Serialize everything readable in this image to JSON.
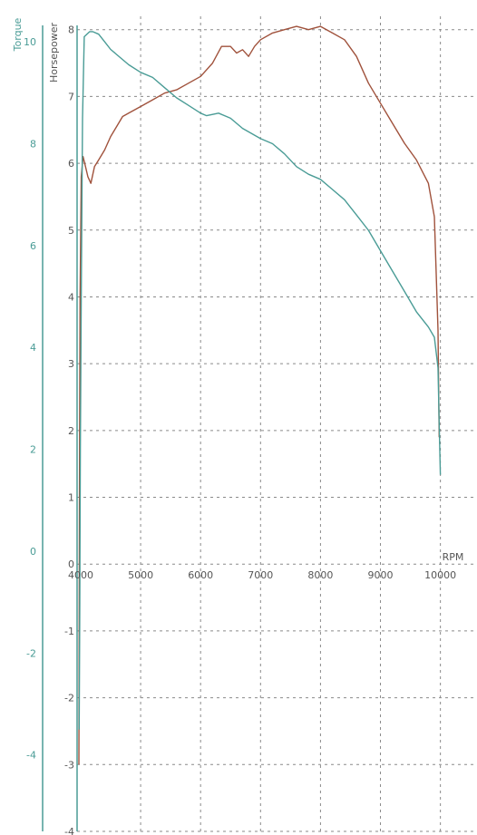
{
  "chart_data": {
    "type": "line",
    "xlabel": "RPM",
    "axes": {
      "x": {
        "ticks": [
          4000,
          5000,
          6000,
          7000,
          8000,
          9000,
          10000
        ],
        "range": [
          3940,
          10550
        ]
      },
      "hp": {
        "label": "Horsepower",
        "ticks": [
          -4,
          -3,
          -2,
          -1,
          0,
          1,
          2,
          3,
          4,
          5,
          6,
          7,
          8
        ],
        "range": [
          -4,
          8.2
        ]
      },
      "torque": {
        "label": "Torque",
        "ticks": [
          -4,
          -2,
          0,
          2,
          4,
          6,
          8,
          10
        ],
        "range": [
          -5.5,
          10.5
        ]
      }
    },
    "grid": true,
    "colors": {
      "horsepower": "#a0523c",
      "torque": "#4a9c96",
      "grid": "#8a8a8a",
      "axis": "#4a9c96"
    },
    "series": [
      {
        "name": "Horsepower",
        "axis": "hp",
        "points": [
          [
            3970,
            -3.0
          ],
          [
            3980,
            1.0
          ],
          [
            3990,
            4.0
          ],
          [
            4010,
            5.8
          ],
          [
            4040,
            6.1
          ],
          [
            4080,
            5.95
          ],
          [
            4120,
            5.8
          ],
          [
            4170,
            5.7
          ],
          [
            4230,
            5.95
          ],
          [
            4300,
            6.05
          ],
          [
            4400,
            6.2
          ],
          [
            4500,
            6.4
          ],
          [
            4600,
            6.55
          ],
          [
            4700,
            6.7
          ],
          [
            4800,
            6.75
          ],
          [
            5000,
            6.85
          ],
          [
            5200,
            6.95
          ],
          [
            5400,
            7.05
          ],
          [
            5600,
            7.1
          ],
          [
            5800,
            7.2
          ],
          [
            6000,
            7.3
          ],
          [
            6200,
            7.5
          ],
          [
            6350,
            7.75
          ],
          [
            6500,
            7.75
          ],
          [
            6600,
            7.65
          ],
          [
            6700,
            7.7
          ],
          [
            6800,
            7.6
          ],
          [
            6900,
            7.75
          ],
          [
            7000,
            7.85
          ],
          [
            7200,
            7.95
          ],
          [
            7400,
            8.0
          ],
          [
            7600,
            8.05
          ],
          [
            7800,
            8.0
          ],
          [
            8000,
            8.05
          ],
          [
            8200,
            7.95
          ],
          [
            8400,
            7.85
          ],
          [
            8600,
            7.6
          ],
          [
            8800,
            7.2
          ],
          [
            9000,
            6.9
          ],
          [
            9200,
            6.6
          ],
          [
            9400,
            6.3
          ],
          [
            9600,
            6.05
          ],
          [
            9800,
            5.7
          ],
          [
            9900,
            5.2
          ],
          [
            9960,
            3.5
          ],
          [
            9980,
            1.9
          ]
        ]
      },
      {
        "name": "Torque",
        "axis": "torque",
        "points": [
          [
            3975,
            -3.5
          ],
          [
            3985,
            -1.0
          ],
          [
            3995,
            2.0
          ],
          [
            4010,
            5.0
          ],
          [
            4030,
            8.5
          ],
          [
            4060,
            10.1
          ],
          [
            4150,
            10.2
          ],
          [
            4200,
            10.2
          ],
          [
            4300,
            10.15
          ],
          [
            4400,
            10.0
          ],
          [
            4500,
            9.85
          ],
          [
            4600,
            9.75
          ],
          [
            4800,
            9.55
          ],
          [
            5000,
            9.4
          ],
          [
            5200,
            9.3
          ],
          [
            5400,
            9.1
          ],
          [
            5600,
            8.9
          ],
          [
            5800,
            8.75
          ],
          [
            6000,
            8.6
          ],
          [
            6100,
            8.55
          ],
          [
            6300,
            8.6
          ],
          [
            6500,
            8.5
          ],
          [
            6700,
            8.3
          ],
          [
            7000,
            8.1
          ],
          [
            7200,
            8.0
          ],
          [
            7400,
            7.8
          ],
          [
            7600,
            7.55
          ],
          [
            7800,
            7.4
          ],
          [
            8000,
            7.3
          ],
          [
            8200,
            7.1
          ],
          [
            8400,
            6.9
          ],
          [
            8600,
            6.6
          ],
          [
            8800,
            6.3
          ],
          [
            9000,
            5.9
          ],
          [
            9200,
            5.5
          ],
          [
            9400,
            5.1
          ],
          [
            9600,
            4.7
          ],
          [
            9800,
            4.4
          ],
          [
            9900,
            4.2
          ],
          [
            9960,
            3.6
          ],
          [
            9980,
            2.5
          ],
          [
            10000,
            1.5
          ]
        ]
      }
    ]
  }
}
